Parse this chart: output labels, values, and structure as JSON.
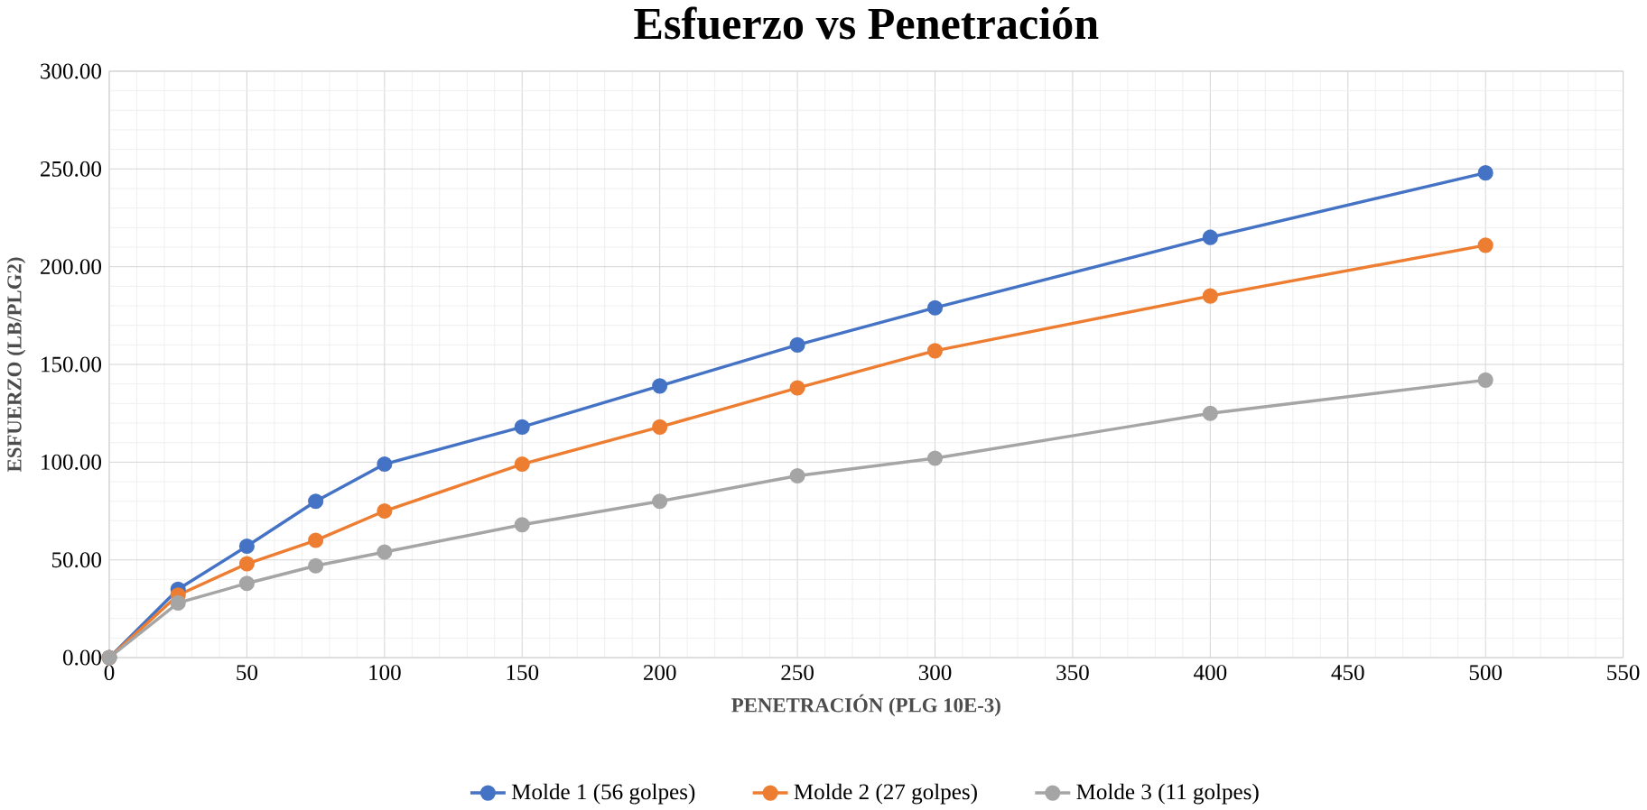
{
  "chart_data": {
    "type": "line",
    "title": "Esfuerzo  vs Penetración",
    "xlabel": "PENETRACIÓN  (PLG 10E-3)",
    "ylabel": "ESFUERZO  (LB/PLG2)",
    "x": [
      0,
      25,
      50,
      75,
      100,
      150,
      200,
      250,
      300,
      400,
      500
    ],
    "series": [
      {
        "name": "Molde 1 (56 golpes)",
        "color": "#4472c4",
        "values": [
          0,
          35,
          57,
          80,
          99,
          118,
          139,
          160,
          179,
          215,
          248
        ]
      },
      {
        "name": "Molde 2 (27 golpes)",
        "color": "#ed7d31",
        "values": [
          0,
          32,
          48,
          60,
          75,
          99,
          118,
          138,
          157,
          185,
          211
        ]
      },
      {
        "name": "Molde 3 (11 golpes)",
        "color": "#a5a5a5",
        "values": [
          0,
          28,
          38,
          47,
          54,
          68,
          80,
          93,
          102,
          125,
          142
        ]
      }
    ],
    "xlim": [
      0,
      550
    ],
    "xticks": [
      0,
      50,
      100,
      150,
      200,
      250,
      300,
      350,
      400,
      450,
      500,
      550
    ],
    "ylim": [
      0,
      300
    ],
    "yticks": [
      {
        "value": 0,
        "label": "0.00"
      },
      {
        "value": 50,
        "label": "50.00"
      },
      {
        "value": 100,
        "label": "100.00"
      },
      {
        "value": 150,
        "label": "150.00"
      },
      {
        "value": 200,
        "label": "200.00"
      },
      {
        "value": 250,
        "label": "250.00"
      },
      {
        "value": 300,
        "label": "300.00"
      }
    ],
    "grid": true,
    "legend": "bottom",
    "marker": "circle",
    "line_style": "solid"
  }
}
